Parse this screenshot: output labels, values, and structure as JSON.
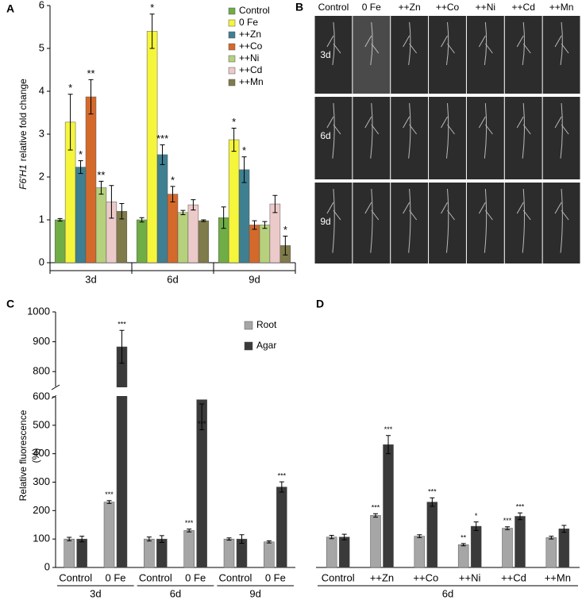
{
  "chart_data": [
    {
      "type": "bar",
      "label": "A",
      "ylabel_italic": "F6'H1",
      "ylabel": "relative fold change",
      "categories": [
        "3d",
        "6d",
        "9d"
      ],
      "ylim": [
        0,
        6
      ],
      "yticks": [
        0,
        1,
        2,
        3,
        4,
        5,
        6
      ],
      "legend": "top-right",
      "series": [
        {
          "name": "Control",
          "color": "#70ad47",
          "values": [
            1.0,
            1.0,
            1.05
          ],
          "errors": [
            0.03,
            0.05,
            0.25
          ],
          "annotations": [
            null,
            null,
            null
          ]
        },
        {
          "name": "0 Fe",
          "color": "#f5f53c",
          "values": [
            3.28,
            5.4,
            2.87
          ],
          "errors": [
            0.65,
            0.4,
            0.27
          ],
          "annotations": [
            "*",
            "*",
            "*"
          ]
        },
        {
          "name": "++Zn",
          "color": "#3f7f92",
          "values": [
            2.23,
            2.52,
            2.17
          ],
          "errors": [
            0.15,
            0.23,
            0.3
          ],
          "annotations": [
            "*",
            "***",
            "*"
          ]
        },
        {
          "name": "++Co",
          "color": "#d4692c",
          "values": [
            3.87,
            1.6,
            0.88
          ],
          "errors": [
            0.4,
            0.18,
            0.1
          ],
          "annotations": [
            "**",
            "*",
            null
          ]
        },
        {
          "name": "++Ni",
          "color": "#b6d07c",
          "values": [
            1.75,
            1.17,
            0.88
          ],
          "errors": [
            0.15,
            0.05,
            0.08
          ],
          "annotations": [
            "**",
            null,
            null
          ]
        },
        {
          "name": "++Cd",
          "color": "#eccaca",
          "values": [
            1.42,
            1.35,
            1.37
          ],
          "errors": [
            0.38,
            0.12,
            0.2
          ],
          "annotations": [
            null,
            null,
            null
          ]
        },
        {
          "name": "++Mn",
          "color": "#7f7b4a",
          "values": [
            1.2,
            0.98,
            0.4
          ],
          "errors": [
            0.18,
            0.02,
            0.22
          ],
          "annotations": [
            null,
            null,
            "*"
          ]
        }
      ]
    },
    {
      "type": "image-grid",
      "label": "B",
      "columns": [
        "Control",
        "0 Fe",
        "++Zn",
        "++Co",
        "++Ni",
        "++Cd",
        "++Mn"
      ],
      "rows": [
        "3d",
        "6d",
        "9d"
      ]
    },
    {
      "type": "bar",
      "label": "C",
      "ylabel": [
        "Relative fluorescence",
        "(%)"
      ],
      "categories": [
        "Control",
        "0 Fe",
        "Control",
        "0 Fe",
        "Control",
        "0 Fe"
      ],
      "groups": [
        "3d",
        "6d",
        "9d"
      ],
      "ylim": [
        0,
        1000
      ],
      "ybreak": [
        600,
        750
      ],
      "yticks": [
        0,
        100,
        200,
        300,
        400,
        500,
        600,
        800,
        900,
        1000
      ],
      "legend": "top-right",
      "series": [
        {
          "name": "Root",
          "color": "#a6a6a6",
          "values": [
            100,
            230,
            100,
            130,
            100,
            90
          ],
          "errors": [
            6,
            5,
            7,
            5,
            4,
            4
          ],
          "annotations": [
            null,
            "***",
            null,
            "***",
            null,
            null
          ]
        },
        {
          "name": "Agar",
          "color": "#3a3a3a",
          "values": [
            100,
            883,
            100,
            590,
            100,
            283
          ],
          "errors": [
            10,
            55,
            12,
            15,
            15,
            18
          ],
          "annotations": [
            null,
            "***",
            null,
            "***",
            null,
            "***"
          ]
        }
      ]
    },
    {
      "type": "bar",
      "label": "D",
      "categories": [
        "Control",
        "++Zn",
        "++Co",
        "++Ni",
        "++Cd",
        "++Mn"
      ],
      "groups": [
        "6d"
      ],
      "ylim": [
        0,
        600
      ],
      "series": [
        {
          "color": "#a6a6a6",
          "values": [
            107,
            183,
            110,
            80,
            138,
            105
          ],
          "errors": [
            6,
            6,
            5,
            4,
            5,
            5
          ],
          "annotations": [
            null,
            "***",
            null,
            "**",
            "***",
            null
          ]
        },
        {
          "color": "#3a3a3a",
          "values": [
            107,
            432,
            230,
            145,
            180,
            136
          ],
          "errors": [
            10,
            32,
            15,
            15,
            12,
            12
          ],
          "annotations": [
            null,
            "***",
            "***",
            "*",
            "***",
            null
          ]
        }
      ]
    }
  ]
}
